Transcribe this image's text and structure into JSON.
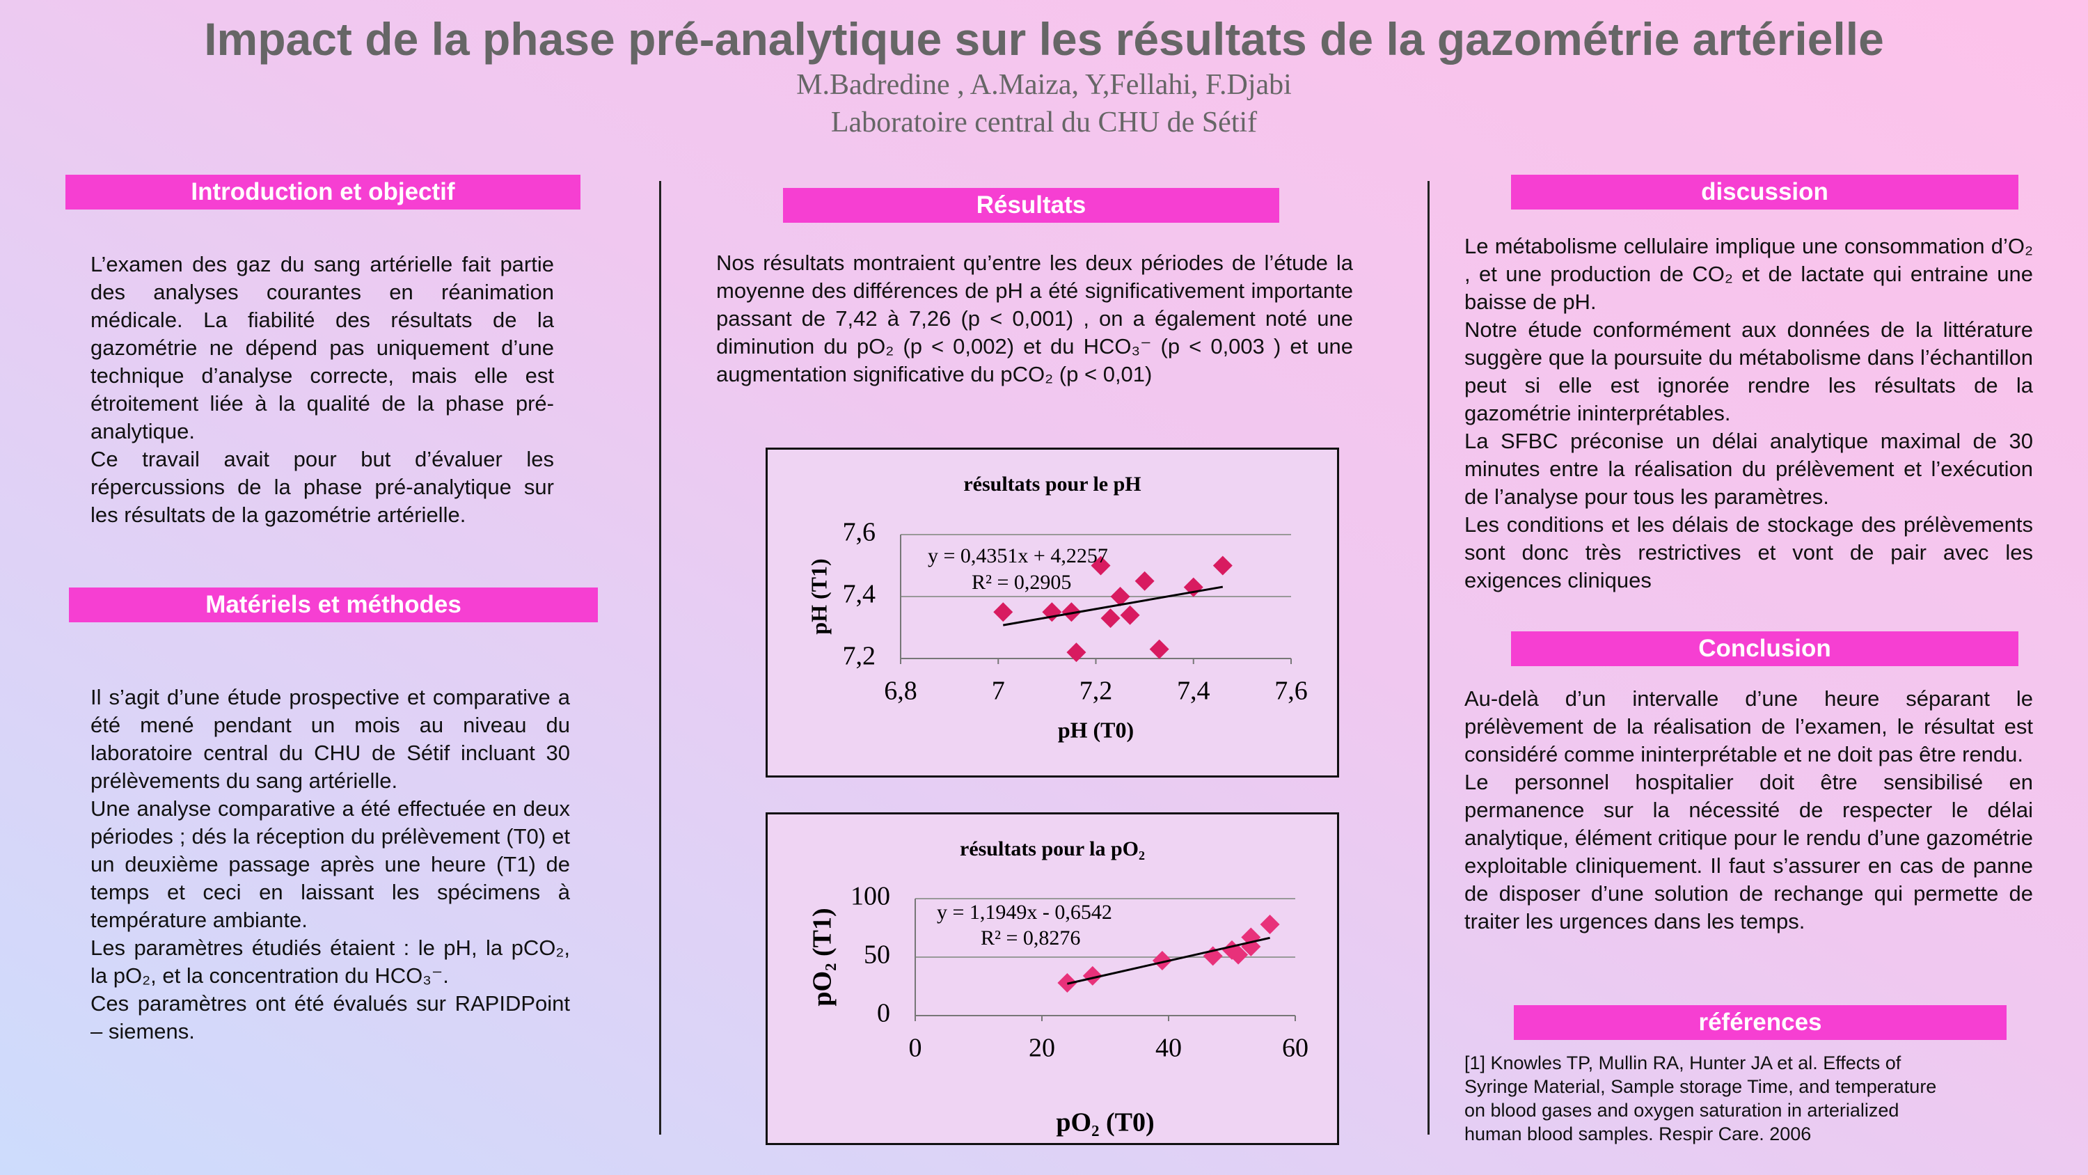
{
  "header": {
    "title": "Impact de la phase pré-analytique sur les résultats de la gazométrie artérielle",
    "authors": "M.Badredine , A.Maiza, Y,Fellahi, F.Djabi",
    "affiliation": "Laboratoire central du CHU de Sétif"
  },
  "introduction": {
    "heading": "Introduction et objectif",
    "paragraphs": [
      "L’examen des gaz du sang artérielle fait partie des analyses courantes en réanimation médicale. La fiabilité des résultats de la gazométrie ne dépend pas uniquement d’une technique d’analyse correcte, mais elle est étroitement liée à la qualité de la phase pré-analytique.",
      "Ce travail avait pour but d’évaluer les répercussions de la phase pré-analytique sur les résultats de la gazométrie artérielle."
    ]
  },
  "methods": {
    "heading": "Matériels et méthodes",
    "paragraphs": [
      "Il s’agit d’une étude prospective et comparative a été mené pendant un mois au niveau du laboratoire central du CHU de Sétif incluant 30 prélèvements du sang artérielle.",
      "Une analyse comparative a été effectuée en deux périodes ; dés la réception du prélèvement (T0) et un deuxième passage après une heure (T1) de temps et ceci en laissant les spécimens à température ambiante.",
      "Les paramètres étudiés étaient : le pH, la pCO₂, la pO₂, et la concentration du HCO₃⁻.",
      "Ces paramètres ont été évalués sur RAPIDPoint – siemens."
    ]
  },
  "results": {
    "heading": "Résultats",
    "paragraphs": [
      "Nos résultats montraient qu’entre les deux périodes de l’étude la moyenne des différences de pH a été significativement importante passant de 7,42 à 7,26 (p < 0,001) , on a également noté une diminution du pO₂ (p < 0,002) et du HCO₃⁻ (p < 0,003 ) et une augmentation significative du pCO₂ (p < 0,01)"
    ]
  },
  "discussion": {
    "heading": "discussion",
    "paragraphs": [
      "Le métabolisme cellulaire implique une consommation d’O₂ , et une production de CO₂ et de lactate qui entraine une baisse de pH.",
      "Notre étude conformément aux données de la littérature suggère que la poursuite du métabolisme dans l’échantillon peut si elle est ignorée rendre les résultats de la gazométrie ininterprétables.",
      "La SFBC préconise un délai analytique maximal de 30 minutes entre la réalisation du prélèvement et l’exécution de l’analyse pour tous les paramètres.",
      "Les conditions et les délais de stockage des prélèvements sont donc très restrictives et vont de pair avec les exigences cliniques"
    ]
  },
  "conclusion": {
    "heading": "Conclusion",
    "paragraphs": [
      "Au-delà d’un intervalle d’une heure séparant le prélèvement de la réalisation de l’examen, le résultat est considéré comme ininterprétable et ne doit pas être rendu.",
      "Le personnel hospitalier doit être sensibilisé en permanence sur la nécessité de respecter le délai analytique, élément critique pour le rendu d’une gazométrie exploitable cliniquement. Il faut s’assurer en cas de panne de disposer d’une solution de rechange qui permette de traiter les urgences dans les temps."
    ]
  },
  "references": {
    "heading": "références",
    "paragraphs": [
      "[1] Knowles TP, Mullin RA, Hunter JA et al. Effects of Syringe Material, Sample storage Time, and temperature on blood gases and oxygen saturation in arterialized human blood samples. Respir Care. 2006"
    ]
  },
  "chart_data": [
    {
      "type": "scatter",
      "title": "résultats pour le pH",
      "x_label": "pH (T0)",
      "y_label": "pH (T1)",
      "x": [
        7.01,
        7.11,
        7.15,
        7.16,
        7.21,
        7.23,
        7.25,
        7.27,
        7.3,
        7.33,
        7.4,
        7.46
      ],
      "values": [
        7.35,
        7.35,
        7.35,
        7.22,
        7.5,
        7.33,
        7.4,
        7.34,
        7.45,
        7.23,
        7.43,
        7.5
      ],
      "color": "#d81b60",
      "xlim": [
        6.8,
        7.6
      ],
      "xticks": [
        {
          "value": 6.8,
          "label": "6,8"
        },
        7,
        {
          "value": 7.2,
          "label": "7,2"
        },
        {
          "value": 7.4,
          "label": "7,4"
        },
        {
          "value": 7.6,
          "label": "7,6"
        }
      ],
      "ylim": [
        7.2,
        7.6
      ],
      "yticks": [
        {
          "value": 7.2,
          "label": "7,2"
        },
        {
          "value": 7.4,
          "label": "7,4"
        },
        {
          "value": 7.6,
          "label": "7,6"
        }
      ],
      "grid": true,
      "trendline": {
        "equation": "y = 0,4351x + 4,2257",
        "r2": "R² = 0,2905"
      }
    },
    {
      "type": "scatter",
      "title": "résultats pour la pO₂",
      "x_label": "pO₂ (T0)",
      "y_label": "pO₂ (T1)",
      "x": [
        24,
        28,
        39,
        47,
        50,
        51,
        53,
        53,
        56
      ],
      "values": [
        28,
        34,
        47,
        51,
        56,
        52,
        67,
        59,
        78
      ],
      "color": "#e8317a",
      "xlim": [
        0,
        60
      ],
      "xticks": [
        0,
        20,
        40,
        60
      ],
      "ylim": [
        0,
        100
      ],
      "yticks": [
        0,
        50,
        100
      ],
      "grid": true,
      "trendline": {
        "equation": "y = 1,1949x - 0,6542",
        "r2": "R² = 0,8276"
      }
    }
  ]
}
